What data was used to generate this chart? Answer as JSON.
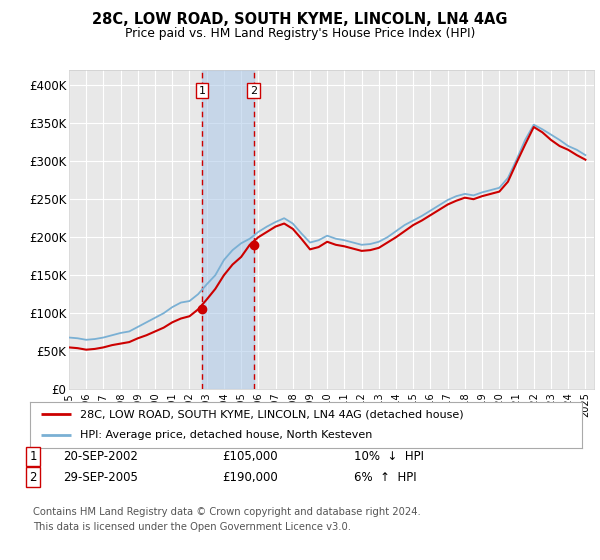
{
  "title": "28C, LOW ROAD, SOUTH KYME, LINCOLN, LN4 4AG",
  "subtitle": "Price paid vs. HM Land Registry's House Price Index (HPI)",
  "ylabel_ticks": [
    "£0",
    "£50K",
    "£100K",
    "£150K",
    "£200K",
    "£250K",
    "£300K",
    "£350K",
    "£400K"
  ],
  "ytick_vals": [
    0,
    50000,
    100000,
    150000,
    200000,
    250000,
    300000,
    350000,
    400000
  ],
  "ylim": [
    0,
    420000
  ],
  "hpi_color": "#7ab0d4",
  "price_color": "#cc0000",
  "bg_color": "#ffffff",
  "plot_bg": "#e8e8e8",
  "grid_color": "#ffffff",
  "sale1_date": "20-SEP-2002",
  "sale1_price": 105000,
  "sale2_date": "29-SEP-2005",
  "sale2_price": 190000,
  "legend_line1": "28C, LOW ROAD, SOUTH KYME, LINCOLN, LN4 4AG (detached house)",
  "legend_line2": "HPI: Average price, detached house, North Kesteven",
  "footnote": "Contains HM Land Registry data © Crown copyright and database right 2024.\nThis data is licensed under the Open Government Licence v3.0.",
  "sale1_x": 2002.72,
  "sale2_x": 2005.72
}
